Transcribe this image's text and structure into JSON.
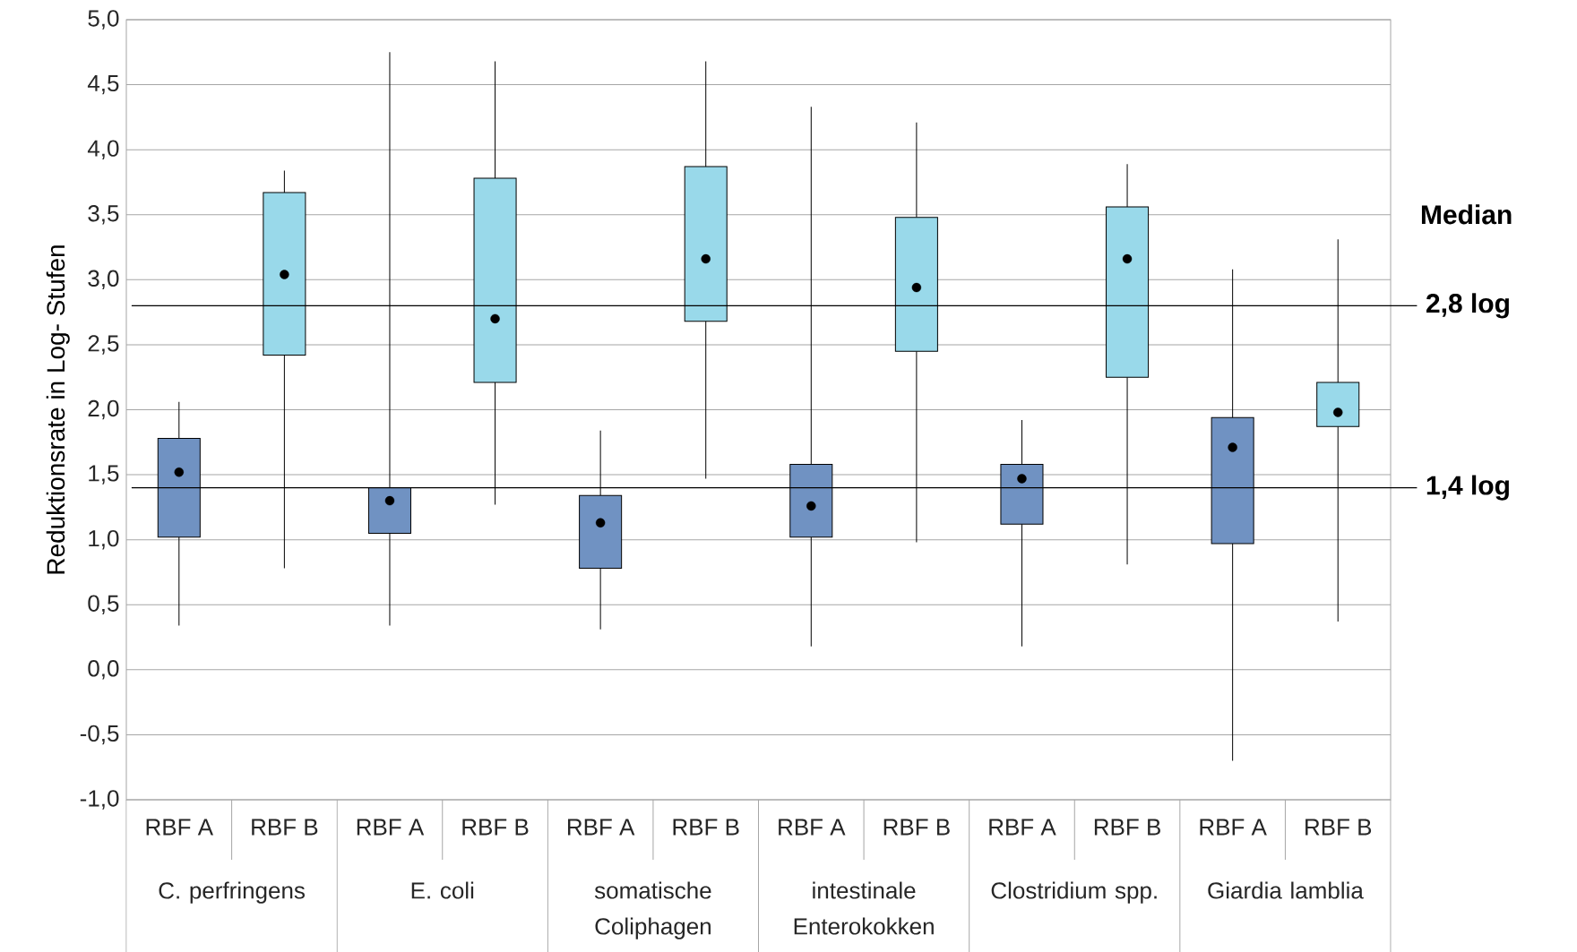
{
  "chart_data": {
    "type": "box",
    "ylabel": "Reduktionsrate in Log- Stufen",
    "categories": [
      "RBF A",
      "RBF B",
      "RBF A",
      "RBF B",
      "RBF A",
      "RBF B",
      "RBF A",
      "RBF B",
      "RBF A",
      "RBF B",
      "RBF A",
      "RBF B"
    ],
    "colors": [
      "#7092c2",
      "#99d9ea",
      "#7092c2",
      "#99d9ea",
      "#7092c2",
      "#99d9ea",
      "#7092c2",
      "#99d9ea",
      "#7092c2",
      "#99d9ea",
      "#7092c2",
      "#99d9ea"
    ],
    "boxes": [
      {
        "low": 0.34,
        "q1": 1.02,
        "median": 1.52,
        "q3": 1.78,
        "high": 2.06
      },
      {
        "low": 0.78,
        "q1": 2.42,
        "median": 3.04,
        "q3": 3.67,
        "high": 3.84
      },
      {
        "low": 0.34,
        "q1": 1.05,
        "median": 1.3,
        "q3": 1.4,
        "high": 4.75
      },
      {
        "low": 1.27,
        "q1": 2.21,
        "median": 2.7,
        "q3": 3.78,
        "high": 4.68
      },
      {
        "low": 0.31,
        "q1": 0.78,
        "median": 1.13,
        "q3": 1.34,
        "high": 1.84
      },
      {
        "low": 1.47,
        "q1": 2.68,
        "median": 3.16,
        "q3": 3.87,
        "high": 4.68
      },
      {
        "low": 0.18,
        "q1": 1.02,
        "median": 1.26,
        "q3": 1.58,
        "high": 4.33
      },
      {
        "low": 0.98,
        "q1": 2.45,
        "median": 2.94,
        "q3": 3.48,
        "high": 4.21
      },
      {
        "low": 0.18,
        "q1": 1.12,
        "median": 1.47,
        "q3": 1.58,
        "high": 1.92
      },
      {
        "low": 0.81,
        "q1": 2.25,
        "median": 3.16,
        "q3": 3.56,
        "high": 3.89
      },
      {
        "low": -0.7,
        "q1": 0.97,
        "median": 1.71,
        "q3": 1.94,
        "high": 3.08
      },
      {
        "low": 0.37,
        "q1": 1.87,
        "median": 1.98,
        "q3": 2.21,
        "high": 3.31
      }
    ],
    "ylim": [
      -1,
      5
    ],
    "yticks": [
      {
        "value": -1,
        "label": "-1,0"
      },
      {
        "value": -0.5,
        "label": "-0,5"
      },
      {
        "value": 0,
        "label": "0,0"
      },
      {
        "value": 0.5,
        "label": "0,5"
      },
      {
        "value": 1,
        "label": "1,0"
      },
      {
        "value": 1.5,
        "label": "1,5"
      },
      {
        "value": 2,
        "label": "2,0"
      },
      {
        "value": 2.5,
        "label": "2,5"
      },
      {
        "value": 3,
        "label": "3,0"
      },
      {
        "value": 3.5,
        "label": "3,5"
      },
      {
        "value": 4,
        "label": "4,0"
      },
      {
        "value": 4.5,
        "label": "4,5"
      },
      {
        "value": 5,
        "label": "5,0"
      }
    ],
    "grid": "y",
    "ref_lines": [
      {
        "axis": "y",
        "value": 2.8,
        "label": "2,8 log",
        "color": "#000000"
      },
      {
        "axis": "y",
        "value": 1.4,
        "label": "1,4 log",
        "color": "#000000"
      }
    ],
    "annotations": [
      "C. perfringens",
      "E. coli",
      "somatische Coliphagen",
      "intestinale Enterokokken",
      "Clostridium spp.",
      "Giardia lamblia",
      "Median"
    ]
  }
}
